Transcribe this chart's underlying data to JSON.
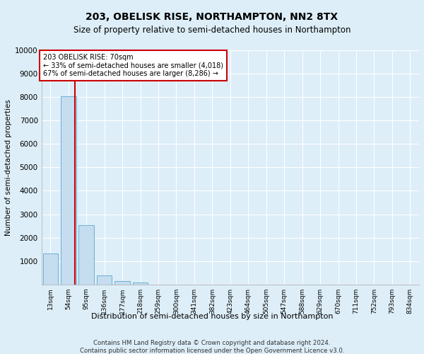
{
  "title": "203, OBELISK RISE, NORTHAMPTON, NN2 8TX",
  "subtitle": "Size of property relative to semi-detached houses in Northampton",
  "xlabel": "Distribution of semi-detached houses by size in Northampton",
  "ylabel": "Number of semi-detached properties",
  "footer_line1": "Contains HM Land Registry data © Crown copyright and database right 2024.",
  "footer_line2": "Contains public sector information licensed under the Open Government Licence v3.0.",
  "categories": [
    "13sqm",
    "54sqm",
    "95sqm",
    "136sqm",
    "177sqm",
    "218sqm",
    "259sqm",
    "300sqm",
    "341sqm",
    "382sqm",
    "423sqm",
    "464sqm",
    "505sqm",
    "547sqm",
    "588sqm",
    "629sqm",
    "670sqm",
    "711sqm",
    "752sqm",
    "793sqm",
    "834sqm"
  ],
  "values": [
    1320,
    8020,
    2520,
    390,
    150,
    100,
    0,
    0,
    0,
    0,
    0,
    0,
    0,
    0,
    0,
    0,
    0,
    0,
    0,
    0,
    0
  ],
  "bar_color": "#c6ddef",
  "bar_edge_color": "#6aafd6",
  "ylim": [
    0,
    10000
  ],
  "yticks": [
    0,
    1000,
    2000,
    3000,
    4000,
    5000,
    6000,
    7000,
    8000,
    9000,
    10000
  ],
  "property_line_x": 1.35,
  "annotation_title": "203 OBELISK RISE: 70sqm",
  "annotation_smaller": "← 33% of semi-detached houses are smaller (4,018)",
  "annotation_larger": "67% of semi-detached houses are larger (8,286) →",
  "annotation_box_color": "#ffffff",
  "annotation_border_color": "#cc0000",
  "red_line_color": "#cc0000",
  "background_color": "#ddeef8",
  "fig_background_color": "#ddeef8",
  "grid_color": "#ffffff",
  "title_fontsize": 10,
  "subtitle_fontsize": 8.5
}
